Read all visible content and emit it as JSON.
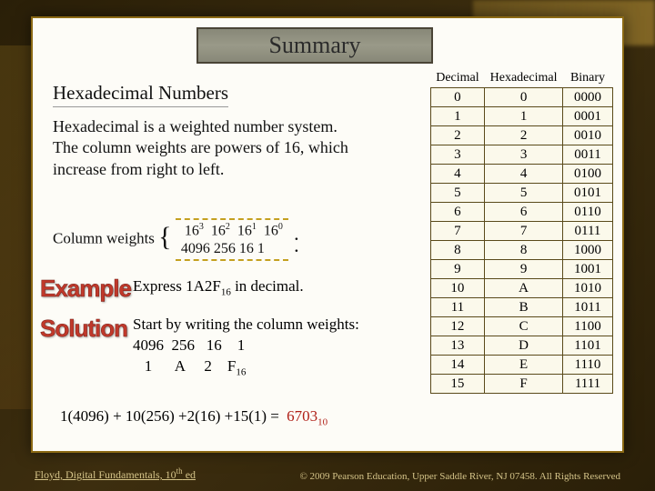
{
  "title": "Summary",
  "subtitle": "Hexadecimal Numbers",
  "body": "Hexadecimal is a weighted number system. The column weights are powers of 16, which increase from right to left.",
  "weights": {
    "label": "Column weights",
    "row1_html": "16³ 16² 16¹ 16⁰",
    "row2": "4096 256  16   1"
  },
  "example": {
    "label": "Example",
    "line_prefix": "Express 1A2F",
    "line_sub": "16",
    "line_suffix": " in decimal."
  },
  "solution": {
    "label": "Solution",
    "l1": "Start by writing the column weights:",
    "l2": "4096  256   16    1",
    "l3_prefix": "   1      A     2    F",
    "l3_sub": "16",
    "final_prefix": "1(4096) + 10(256) +2(16) +15(1) = ",
    "answer": "6703",
    "answer_sub": "10"
  },
  "table": {
    "headers": [
      "Decimal",
      "Hexadecimal",
      "Binary"
    ],
    "rows": [
      [
        "0",
        "0",
        "0000"
      ],
      [
        "1",
        "1",
        "0001"
      ],
      [
        "2",
        "2",
        "0010"
      ],
      [
        "3",
        "3",
        "0011"
      ],
      [
        "4",
        "4",
        "0100"
      ],
      [
        "5",
        "5",
        "0101"
      ],
      [
        "6",
        "6",
        "0110"
      ],
      [
        "7",
        "7",
        "0111"
      ],
      [
        "8",
        "8",
        "1000"
      ],
      [
        "9",
        "9",
        "1001"
      ],
      [
        "10",
        "A",
        "1010"
      ],
      [
        "11",
        "B",
        "1011"
      ],
      [
        "12",
        "C",
        "1100"
      ],
      [
        "13",
        "D",
        "1101"
      ],
      [
        "14",
        "E",
        "1110"
      ],
      [
        "15",
        "F",
        "1111"
      ]
    ]
  },
  "footer": {
    "left_book": "Floyd, Digital Fundamentals, 10",
    "left_ord": "th",
    "left_ed": " ed",
    "right": "© 2009 Pearson Education, Upper Saddle River, NJ 07458. All Rights Reserved"
  },
  "colors": {
    "accent": "#c0392b",
    "border": "#8b6914",
    "slide_bg": "#fdfcf7"
  }
}
